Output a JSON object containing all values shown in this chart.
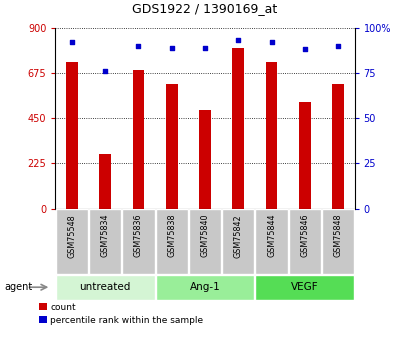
{
  "title": "GDS1922 / 1390169_at",
  "samples": [
    "GSM75548",
    "GSM75834",
    "GSM75836",
    "GSM75838",
    "GSM75840",
    "GSM75842",
    "GSM75844",
    "GSM75846",
    "GSM75848"
  ],
  "counts": [
    730,
    270,
    690,
    620,
    490,
    800,
    730,
    530,
    620
  ],
  "percentiles": [
    92,
    76,
    90,
    89,
    89,
    93,
    92,
    88,
    90
  ],
  "groups": [
    {
      "label": "untreated",
      "indices": [
        0,
        1,
        2
      ],
      "color": "#d4f5d4"
    },
    {
      "label": "Ang-1",
      "indices": [
        3,
        4,
        5
      ],
      "color": "#99ee99"
    },
    {
      "label": "VEGF",
      "indices": [
        6,
        7,
        8
      ],
      "color": "#55dd55"
    }
  ],
  "bar_color": "#cc0000",
  "dot_color": "#0000cc",
  "ylim_left": [
    0,
    900
  ],
  "ylim_right": [
    0,
    100
  ],
  "yticks_left": [
    0,
    225,
    450,
    675,
    900
  ],
  "yticks_right": [
    0,
    25,
    50,
    75,
    100
  ],
  "yticklabels_right": [
    "0",
    "25",
    "50",
    "75",
    "100%"
  ],
  "yticklabels_left": [
    "0",
    "225",
    "450",
    "675",
    "900"
  ],
  "grid_color": "black",
  "xlabel_color_left": "#cc0000",
  "xlabel_color_right": "#0000cc",
  "agent_label": "agent",
  "legend_count_label": "count",
  "legend_percentile_label": "percentile rank within the sample",
  "bg_sample_row": "#c8c8c8"
}
